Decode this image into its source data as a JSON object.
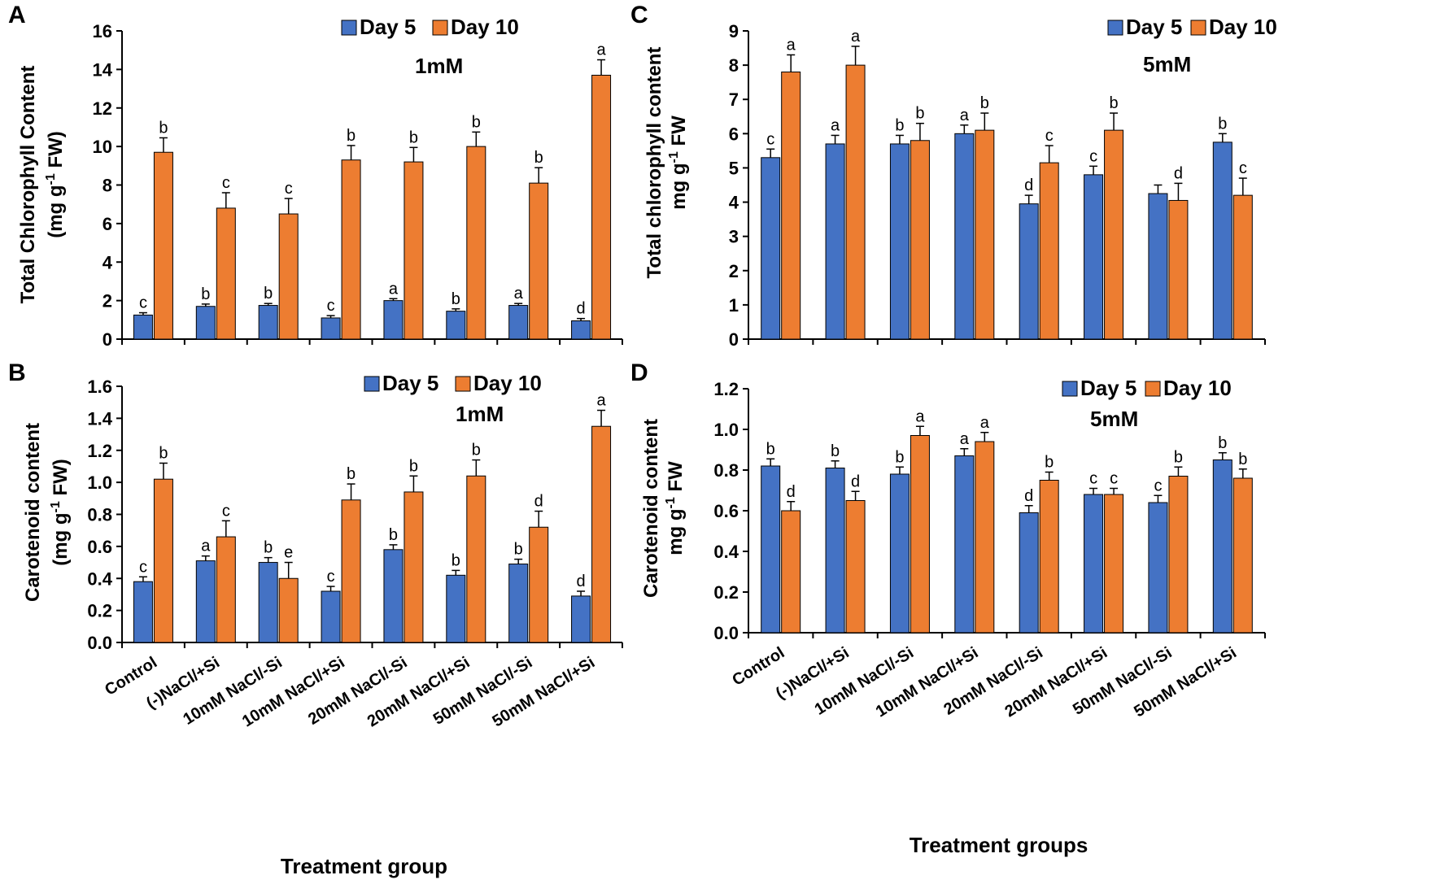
{
  "colors": {
    "day5": "#4472C4",
    "day10": "#ED7D31",
    "axis": "#000000"
  },
  "legend": {
    "day5": "Day 5",
    "day10": "Day 10"
  },
  "chart_data": [
    {
      "panel": "A",
      "type": "bar",
      "title": "1mM",
      "ylabel": "Total Chlorophyll Content",
      "ylabel2": "(mg g-1 FW)",
      "xlabel": "",
      "ylim": [
        0,
        16
      ],
      "yticks": [
        "0",
        "2",
        "4",
        "6",
        "8",
        "10",
        "12",
        "14",
        "16"
      ],
      "categories": [
        "Control",
        "(-)NaCl/+Si",
        "10mM NaCl/-Si",
        "10mM NaCl/+Si",
        "20mM NaCl/-Si",
        "20mM NaCl/+Si",
        "50mM NaCl/-Si",
        "50mM NaCl/+Si"
      ],
      "show_categories": false,
      "series": [
        {
          "name": "Day 5",
          "values": [
            1.25,
            1.7,
            1.75,
            1.1,
            2.0,
            1.45,
            1.75,
            0.95
          ],
          "errors": [
            0.12,
            0.12,
            0.1,
            0.12,
            0.1,
            0.12,
            0.1,
            0.12
          ],
          "letters": [
            "c",
            "b",
            "b",
            "c",
            "a",
            "b",
            "a",
            "d"
          ]
        },
        {
          "name": "Day 10",
          "values": [
            9.7,
            6.8,
            6.5,
            9.3,
            9.2,
            10.0,
            8.1,
            13.7
          ],
          "errors": [
            0.75,
            0.8,
            0.8,
            0.75,
            0.75,
            0.75,
            0.8,
            0.8
          ],
          "letters": [
            "b",
            "c",
            "c",
            "b",
            "b",
            "b",
            "b",
            "a"
          ]
        }
      ]
    },
    {
      "panel": "B",
      "type": "bar",
      "title": "1mM",
      "ylabel": "Carotenoid content",
      "ylabel2": "(mg g-1 FW)",
      "xlabel": "Treatment group",
      "ylim": [
        0,
        1.6
      ],
      "yticks": [
        "0.0",
        "0.2",
        "0.4",
        "0.6",
        "0.8",
        "1.0",
        "1.2",
        "1.4",
        "1.6"
      ],
      "categories": [
        "Control",
        "(-)NaCl/+Si",
        "10mM NaCl/-Si",
        "10mM NaCl/+Si",
        "20mM NaCl/-Si",
        "20mM NaCl/+Si",
        "50mM NaCl/-Si",
        "50mM NaCl/+Si"
      ],
      "show_categories": true,
      "series": [
        {
          "name": "Day 5",
          "values": [
            0.38,
            0.51,
            0.5,
            0.32,
            0.58,
            0.42,
            0.49,
            0.29
          ],
          "errors": [
            0.03,
            0.03,
            0.03,
            0.03,
            0.03,
            0.03,
            0.03,
            0.03
          ],
          "letters": [
            "c",
            "a",
            "b",
            "c",
            "b",
            "b",
            "b",
            "d"
          ]
        },
        {
          "name": "Day 10",
          "values": [
            1.02,
            0.66,
            0.4,
            0.89,
            0.94,
            1.04,
            0.72,
            1.35
          ],
          "errors": [
            0.1,
            0.1,
            0.1,
            0.1,
            0.1,
            0.1,
            0.1,
            0.1
          ],
          "letters": [
            "b",
            "c",
            "e",
            "b",
            "b",
            "b",
            "d",
            "a"
          ]
        }
      ]
    },
    {
      "panel": "C",
      "type": "bar",
      "title": "5mM",
      "ylabel": "Total chlorophyll content",
      "ylabel2": "mg g-1 FW",
      "xlabel": "",
      "ylim": [
        0,
        9
      ],
      "yticks": [
        "0",
        "1",
        "2",
        "3",
        "4",
        "5",
        "6",
        "7",
        "8",
        "9"
      ],
      "categories": [
        "Control",
        "(-)NaCl/+Si",
        "10mM NaCl/-Si",
        "10mM NaCl/+Si",
        "20mM NaCl/-Si",
        "20mM NaCl/+Si",
        "50mM NaCl/-Si",
        "50mM NaCl/+Si"
      ],
      "show_categories": false,
      "series": [
        {
          "name": "Day 5",
          "values": [
            5.3,
            5.7,
            5.7,
            6.0,
            3.95,
            4.8,
            4.25,
            5.75
          ],
          "errors": [
            0.25,
            0.25,
            0.25,
            0.25,
            0.25,
            0.25,
            0.25,
            0.25
          ],
          "letters": [
            "c",
            "a",
            "b",
            "a",
            "d",
            "c",
            "",
            "b"
          ]
        },
        {
          "name": "Day 10",
          "values": [
            7.8,
            8.0,
            5.8,
            6.1,
            5.15,
            6.1,
            4.05,
            4.2
          ],
          "errors": [
            0.5,
            0.55,
            0.5,
            0.5,
            0.5,
            0.5,
            0.5,
            0.5
          ],
          "letters": [
            "a",
            "a",
            "b",
            "b",
            "c",
            "b",
            "d",
            "c"
          ]
        }
      ]
    },
    {
      "panel": "D",
      "type": "bar",
      "title": "5mM",
      "ylabel": "Carotenoid content",
      "ylabel2": "mg g-1 FW",
      "xlabel": "Treatment groups",
      "ylim": [
        0,
        1.2
      ],
      "yticks": [
        "0.0",
        "0.2",
        "0.4",
        "0.6",
        "0.8",
        "1.0",
        "1.2"
      ],
      "categories": [
        "Control",
        "(-)NaCl/+Si",
        "10mM NaCl/-Si",
        "10mM NaCl/+Si",
        "20mM NaCl/-Si",
        "20mM NaCl/+Si",
        "50mM NaCl/-Si",
        "50mM NaCl/+Si"
      ],
      "show_categories": true,
      "series": [
        {
          "name": "Day 5",
          "values": [
            0.82,
            0.81,
            0.78,
            0.87,
            0.59,
            0.68,
            0.64,
            0.85
          ],
          "errors": [
            0.035,
            0.035,
            0.035,
            0.035,
            0.035,
            0.03,
            0.035,
            0.035
          ],
          "letters": [
            "b",
            "b",
            "b",
            "a",
            "d",
            "c",
            "c",
            "b"
          ]
        },
        {
          "name": "Day 10",
          "values": [
            0.6,
            0.65,
            0.97,
            0.94,
            0.75,
            0.68,
            0.77,
            0.76
          ],
          "errors": [
            0.045,
            0.045,
            0.045,
            0.045,
            0.04,
            0.03,
            0.045,
            0.045
          ],
          "letters": [
            "d",
            "d",
            "a",
            "a",
            "b",
            "c",
            "b",
            "b"
          ]
        }
      ]
    }
  ]
}
